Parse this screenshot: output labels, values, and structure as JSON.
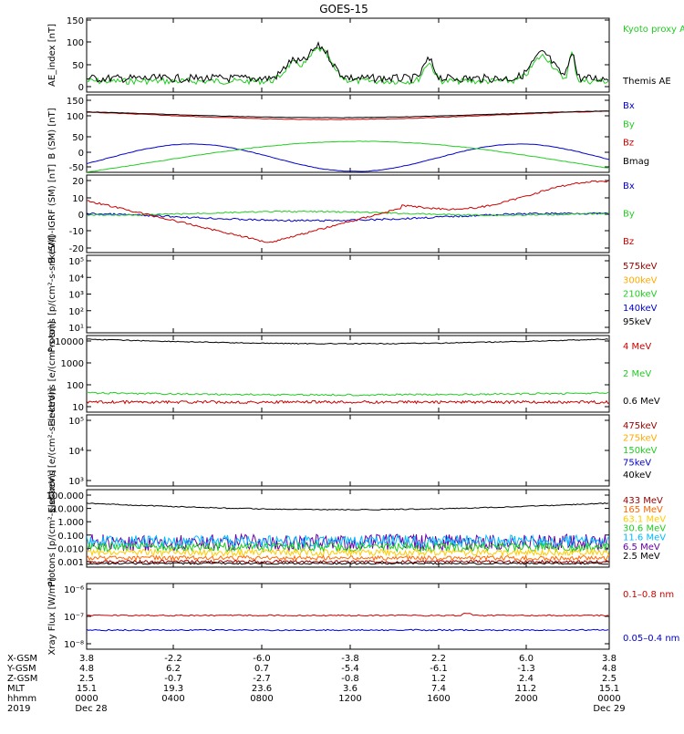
{
  "title": "GOES-15",
  "chart_data": [
    {
      "type": "line",
      "ylabel": "AE_index [nT]",
      "yticks": [
        "0",
        "50",
        "100",
        "150"
      ],
      "ylim": [
        0,
        150
      ],
      "legend": [
        {
          "name": "Kyoto proxy AE",
          "color": "#22cc22"
        },
        {
          "name": "Themis AE",
          "color": "#000000"
        }
      ]
    },
    {
      "type": "line",
      "ylabel": "B (SM) [nT]",
      "yticks": [
        "-50",
        "0",
        "50",
        "100",
        "150"
      ],
      "ylim": [
        -55,
        150
      ],
      "legend": [
        {
          "name": "Bx",
          "color": "#0000cc"
        },
        {
          "name": "By",
          "color": "#22cc22"
        },
        {
          "name": "Bz",
          "color": "#cc0000"
        },
        {
          "name": "Bmag",
          "color": "#000000"
        }
      ]
    },
    {
      "type": "line",
      "ylabel": "B (SM)-IGRF (SM) [nT]",
      "yticks": [
        "-20",
        "-10",
        "0",
        "10",
        "20"
      ],
      "ylim": [
        -22,
        22
      ],
      "legend": [
        {
          "name": "Bx",
          "color": "#0000cc"
        },
        {
          "name": "By",
          "color": "#22cc22"
        },
        {
          "name": "Bz",
          "color": "#cc0000"
        }
      ]
    },
    {
      "type": "line",
      "ylabel": "Protons [p/(cm²-s-sr-keV)]",
      "yticks": [
        "10¹",
        "10²",
        "10³",
        "10⁴",
        "10⁵"
      ],
      "ylim": [
        10,
        100000
      ],
      "log": true,
      "legend": [
        {
          "name": "575keV",
          "color": "#990000"
        },
        {
          "name": "300keV",
          "color": "#ffaa00"
        },
        {
          "name": "210keV",
          "color": "#22cc22"
        },
        {
          "name": "140keV",
          "color": "#0000cc"
        },
        {
          "name": "95keV",
          "color": "#000000"
        }
      ]
    },
    {
      "type": "line",
      "ylabel": "Electrons [e/(cm²-s-sr)]",
      "yticks": [
        "10",
        "100",
        "1000",
        "10000"
      ],
      "ylim": [
        10,
        10000
      ],
      "log": true,
      "legend": [
        {
          "name": "4 MeV",
          "color": "#cc0000"
        },
        {
          "name": "2 MeV",
          "color": "#22cc22"
        },
        {
          "name": "0.6 MeV",
          "color": "#000000"
        }
      ]
    },
    {
      "type": "line",
      "ylabel": "Electrons [e/(cm²-s-sr-keV)]",
      "yticks": [
        "10³",
        "10⁴",
        "10⁵"
      ],
      "ylim": [
        1000,
        100000
      ],
      "log": true,
      "legend": [
        {
          "name": "475keV",
          "color": "#990000"
        },
        {
          "name": "275keV",
          "color": "#ffaa00"
        },
        {
          "name": "150keV",
          "color": "#22cc22"
        },
        {
          "name": "75keV",
          "color": "#0000cc"
        },
        {
          "name": "40keV",
          "color": "#000000"
        }
      ]
    },
    {
      "type": "line",
      "ylabel": "Protons [p/(cm²-s-sr-keV)]",
      "yticks": [
        "0.001",
        "0.010",
        "0.100",
        "1.000",
        "10.000",
        "100.000"
      ],
      "ylim": [
        0.001,
        100
      ],
      "log": true,
      "legend": [
        {
          "name": "433 MeV",
          "color": "#990000"
        },
        {
          "name": "165 MeV",
          "color": "#ff6600"
        },
        {
          "name": "63.1 MeV",
          "color": "#ffcc00"
        },
        {
          "name": "30.6 MeV",
          "color": "#22cc22"
        },
        {
          "name": "11.6 MeV",
          "color": "#00bbff"
        },
        {
          "name": "6.5 MeV",
          "color": "#6600aa"
        },
        {
          "name": "2.5 MeV",
          "color": "#000000"
        }
      ]
    },
    {
      "type": "line",
      "ylabel": "Xray Flux [W/m²]",
      "yticks": [
        "10⁻⁸",
        "10⁻⁷",
        "10⁻⁶"
      ],
      "ylim": [
        1e-08,
        1e-06
      ],
      "log": true,
      "legend": [
        {
          "name": "0.1–0.8 nm",
          "color": "#cc0000"
        },
        {
          "name": "0.05–0.4 nm",
          "color": "#0000cc"
        }
      ]
    }
  ],
  "orbit_table": {
    "row_labels": [
      "X-GSM",
      "Y-GSM",
      "Z-GSM",
      "MLT",
      "hhmm",
      "2019"
    ],
    "columns": [
      [
        "3.8",
        "4.8",
        "2.5",
        "15.1",
        "0000",
        "Dec 28"
      ],
      [
        "-2.2",
        "6.2",
        "-0.7",
        "19.3",
        "0400",
        ""
      ],
      [
        "-6.0",
        "0.7",
        "-2.7",
        "23.6",
        "0800",
        ""
      ],
      [
        "-3.8",
        "-5.4",
        "-0.8",
        "3.6",
        "1200",
        ""
      ],
      [
        "2.2",
        "-6.1",
        "1.2",
        "7.4",
        "1600",
        ""
      ],
      [
        "6.0",
        "-1.3",
        "2.4",
        "11.2",
        "2000",
        ""
      ],
      [
        "3.8",
        "4.8",
        "2.5",
        "15.1",
        "0000",
        "Dec 29"
      ]
    ]
  }
}
